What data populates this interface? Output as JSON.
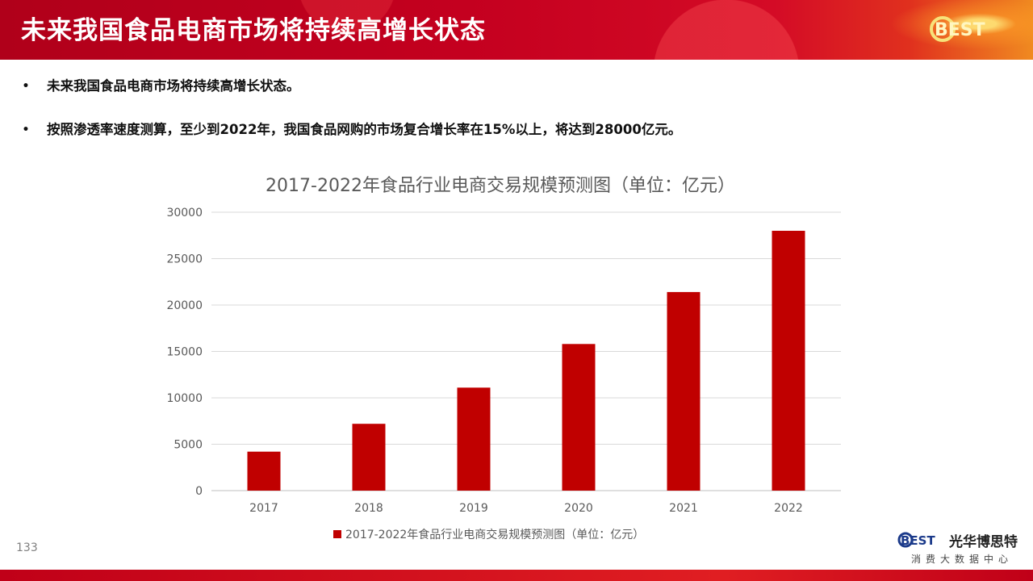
{
  "header": {
    "title": "未来我国食品电商市场将持续高增长状态",
    "logo": "BEST"
  },
  "bullets": [
    "未来我国食品电商市场将持续高增长状态。",
    "按照渗透率速度测算，至少到2022年，我国食品网购的市场复合增长率在15%以上，将达到28000亿元。"
  ],
  "chart_data": {
    "type": "bar",
    "title": "2017-2022年食品行业电商交易规模预测图（单位：亿元）",
    "categories": [
      "2017",
      "2018",
      "2019",
      "2020",
      "2021",
      "2022"
    ],
    "series": [
      {
        "name": "2017-2022年食品行业电商交易规模预测图（单位：亿元）",
        "values": [
          4200,
          7200,
          11100,
          15800,
          21400,
          28000
        ],
        "color": "#c00000"
      }
    ],
    "yticks": [
      0,
      5000,
      10000,
      15000,
      20000,
      25000,
      30000
    ],
    "ylim": [
      0,
      30000
    ],
    "grid": true,
    "legend_position": "bottom"
  },
  "footer": {
    "page_number": "133",
    "brand_logo": "BEST",
    "brand_name": "光华博思特",
    "brand_tagline": "消费大数据中心"
  }
}
